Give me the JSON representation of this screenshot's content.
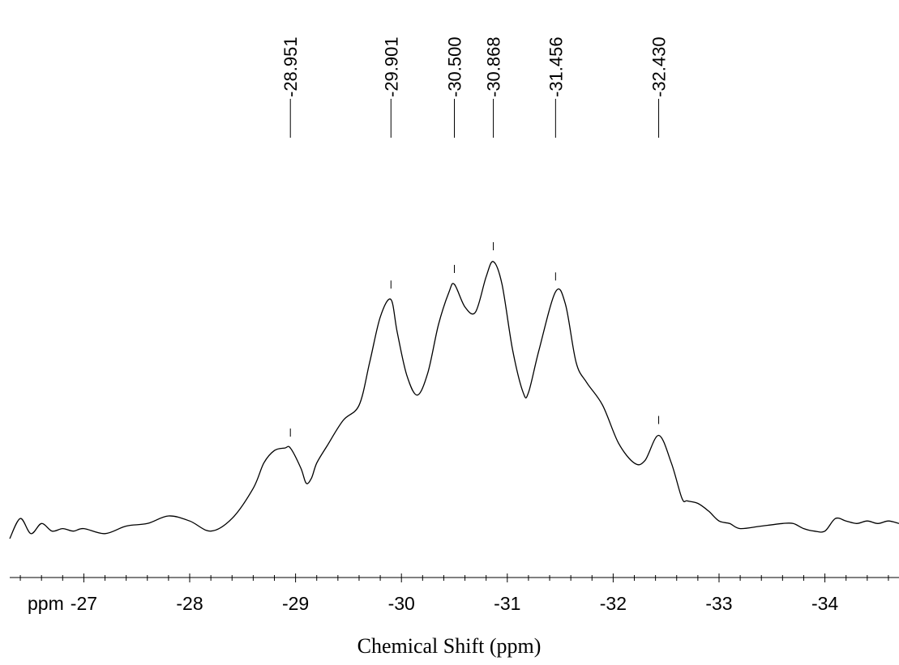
{
  "chart_data": {
    "type": "line",
    "xlabel": "Chemical Shift (ppm)",
    "unit_label": "ppm",
    "xlim": [
      -26.3,
      -34.7
    ],
    "x_reversed": true,
    "xticks": [
      -27,
      -28,
      -29,
      -30,
      -31,
      -32,
      -33,
      -34
    ],
    "x_minor_step": 0.2,
    "grid": false,
    "peak_labels": [
      "-28.951",
      "-29.901",
      "-30.500",
      "-30.868",
      "-31.456",
      "-32.430"
    ],
    "peaks": [
      -28.951,
      -29.901,
      -30.5,
      -30.868,
      -31.456,
      -32.43
    ],
    "series": [
      {
        "x": [
          -26.3,
          -26.4,
          -26.5,
          -26.6,
          -26.7,
          -26.8,
          -26.9,
          -27.0,
          -27.2,
          -27.4,
          -27.6,
          -27.8,
          -28.0,
          -28.2,
          -28.4,
          -28.6,
          -28.7,
          -28.8,
          -28.9,
          -28.951,
          -29.05,
          -29.1,
          -29.15,
          -29.2,
          -29.3,
          -29.45,
          -29.6,
          -29.7,
          -29.8,
          -29.9,
          -29.96,
          -30.05,
          -30.15,
          -30.25,
          -30.35,
          -30.45,
          -30.5,
          -30.6,
          -30.7,
          -30.8,
          -30.868,
          -30.95,
          -31.05,
          -31.15,
          -31.2,
          -31.3,
          -31.456,
          -31.55,
          -31.65,
          -31.75,
          -31.9,
          -32.05,
          -32.2,
          -32.3,
          -32.43,
          -32.55,
          -32.65,
          -32.7,
          -32.8,
          -32.9,
          -33.0,
          -33.1,
          -33.2,
          -33.4,
          -33.6,
          -33.7,
          -33.8,
          -33.9,
          -34.0,
          -34.1,
          -34.2,
          -34.3,
          -34.4,
          -34.5,
          -34.6,
          -34.7
        ],
        "y": [
          0.0,
          0.08,
          0.02,
          0.06,
          0.03,
          0.04,
          0.03,
          0.04,
          0.02,
          0.05,
          0.06,
          0.09,
          0.07,
          0.03,
          0.08,
          0.2,
          0.3,
          0.35,
          0.36,
          0.36,
          0.28,
          0.22,
          0.24,
          0.3,
          0.37,
          0.47,
          0.53,
          0.7,
          0.88,
          0.95,
          0.82,
          0.65,
          0.57,
          0.66,
          0.85,
          0.98,
          1.01,
          0.92,
          0.9,
          1.04,
          1.1,
          1.01,
          0.75,
          0.58,
          0.58,
          0.75,
          0.98,
          0.93,
          0.7,
          0.62,
          0.53,
          0.38,
          0.3,
          0.31,
          0.41,
          0.3,
          0.16,
          0.15,
          0.14,
          0.11,
          0.07,
          0.06,
          0.04,
          0.05,
          0.06,
          0.06,
          0.04,
          0.03,
          0.03,
          0.08,
          0.07,
          0.06,
          0.07,
          0.06,
          0.07,
          0.06
        ]
      }
    ]
  }
}
